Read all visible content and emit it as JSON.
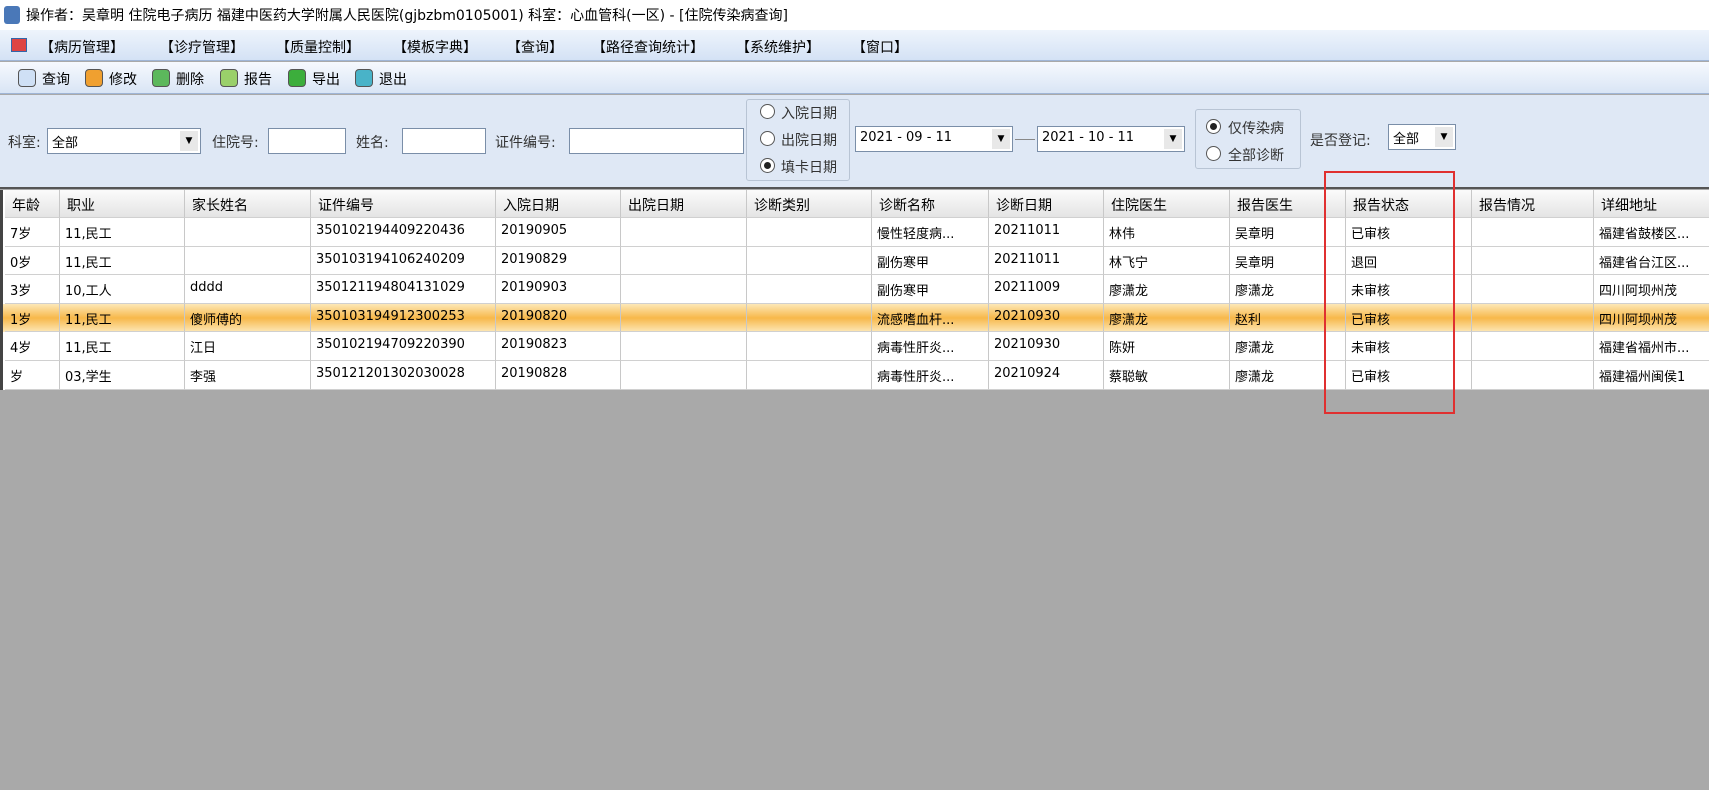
{
  "window_title": "操作者：吴章明 住院电子病历  福建中医药大学附属人民医院(gjbzbm0105001)  科室：心血管科(一区) - [住院传染病查询]",
  "menu": [
    "【病历管理】",
    "【诊疗管理】",
    "【质量控制】",
    "【模板字典】",
    "【查询】",
    "【路径查询统计】",
    "【系统维护】",
    "【窗口】"
  ],
  "toolbar": [
    "查询",
    "修改",
    "删除",
    "报告",
    "导出",
    "退出"
  ],
  "filters": {
    "dept_label": "科室:",
    "dept_value": "全部",
    "inpatient_no_label": "住院号:",
    "name_label": "姓名:",
    "id_no_label": "证件编号:",
    "date_type_options": [
      "入院日期",
      "出院日期",
      "填卡日期"
    ],
    "date_from": "2021 - 09 - 11",
    "date_to": "2021 - 10 - 11",
    "scope_options": [
      "仅传染病",
      "全部诊断"
    ],
    "registered_label": "是否登记:",
    "registered_value": "全部"
  },
  "table": {
    "headers": [
      "年龄",
      "职业",
      "家长姓名",
      "证件编号",
      "入院日期",
      "出院日期",
      "诊断类别",
      "诊断名称",
      "诊断日期",
      "住院医生",
      "报告医生",
      "报告状态",
      "报告情况",
      "详细地址"
    ],
    "rows": [
      [
        "7岁",
        "11,民工",
        null,
        "350102194409220436",
        "20190905",
        null,
        null,
        "慢性轻度病...",
        "20211011",
        "林伟",
        "吴章明",
        "已审核",
        null,
        "福建省鼓楼区..."
      ],
      [
        "0岁",
        "11,民工",
        null,
        "350103194106240209",
        "20190829",
        null,
        null,
        "副伤寒甲",
        "20211011",
        "林飞宁",
        "吴章明",
        "退回",
        null,
        "福建省台江区..."
      ],
      [
        "3岁",
        "10,工人",
        "dddd",
        "350121194804131029",
        "20190903",
        null,
        null,
        "副伤寒甲",
        "20211009",
        "廖潇龙",
        "廖潇龙",
        "未审核",
        null,
        "四川阿坝州茂"
      ],
      [
        "1岁",
        "11,民工",
        "傻师傅的",
        "350103194912300253",
        "20190820",
        null,
        null,
        "流感嗜血杆...",
        "20210930",
        "廖潇龙",
        "赵利",
        "已审核",
        null,
        "四川阿坝州茂"
      ],
      [
        "4岁",
        "11,民工",
        "江日",
        "350102194709220390",
        "20190823",
        null,
        null,
        "病毒性肝炎...",
        "20210930",
        "陈妍",
        "廖潇龙",
        "未审核",
        null,
        "福建省福州市..."
      ],
      [
        "岁",
        "03,学生",
        "李强",
        "350121201302030028",
        "20190828",
        null,
        null,
        "病毒性肝炎...",
        "20210924",
        "蔡聪敏",
        "廖潇龙",
        "已审核",
        null,
        "福建福州闽侯1"
      ]
    ]
  }
}
